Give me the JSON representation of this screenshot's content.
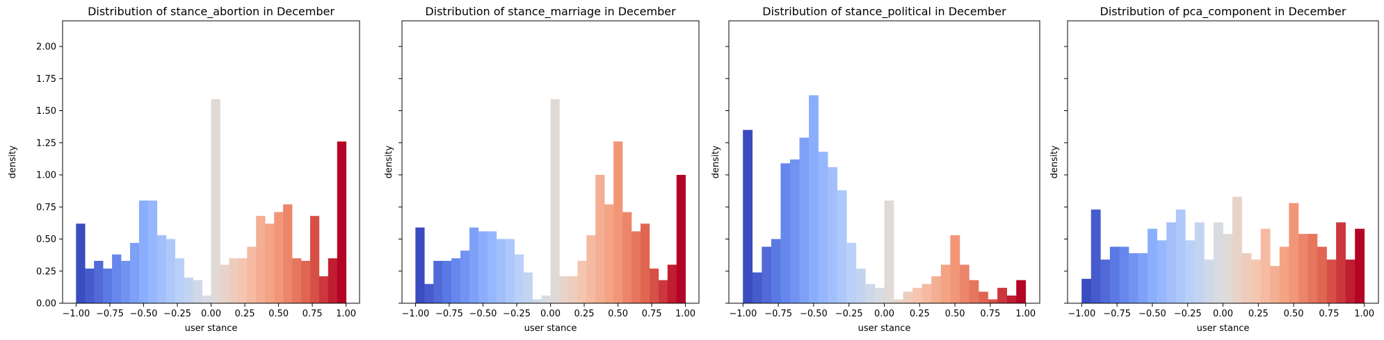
{
  "chart_data": [
    {
      "type": "bar",
      "title": "Distribution of stance_abortion in December",
      "xlabel": "user stance",
      "ylabel": "density",
      "xlim": [
        -1.1,
        1.1
      ],
      "ylim": [
        0,
        2.2
      ],
      "bin_width": 0.0667,
      "x_ticks": [
        "−1.00",
        "−0.75",
        "−0.50",
        "−0.25",
        "0.00",
        "0.25",
        "0.50",
        "0.75",
        "1.00"
      ],
      "y_ticks": [
        "0.00",
        "0.25",
        "0.50",
        "0.75",
        "1.00",
        "1.25",
        "1.50",
        "1.75",
        "2.00"
      ],
      "values": [
        0.62,
        0.27,
        0.33,
        0.27,
        0.38,
        0.33,
        0.47,
        0.8,
        0.8,
        0.53,
        0.5,
        0.35,
        0.2,
        0.18,
        0.06,
        1.59,
        0.3,
        0.35,
        0.35,
        0.44,
        0.68,
        0.62,
        0.71,
        0.77,
        0.35,
        0.33,
        0.68,
        0.21,
        0.35,
        1.26
      ]
    },
    {
      "type": "bar",
      "title": "Distribution of stance_marriage in December",
      "xlabel": "user stance",
      "ylabel": "density",
      "xlim": [
        -1.1,
        1.1
      ],
      "ylim": [
        0,
        2.2
      ],
      "bin_width": 0.0667,
      "x_ticks": [
        "−1.00",
        "−0.75",
        "−0.50",
        "−0.25",
        "0.00",
        "0.25",
        "0.50",
        "0.75",
        "1.00"
      ],
      "y_ticks": [],
      "values": [
        0.59,
        0.15,
        0.33,
        0.33,
        0.35,
        0.41,
        0.59,
        0.56,
        0.56,
        0.5,
        0.5,
        0.38,
        0.24,
        0.03,
        0.06,
        1.59,
        0.21,
        0.21,
        0.33,
        0.53,
        1.0,
        0.77,
        1.26,
        0.71,
        0.56,
        0.62,
        0.27,
        0.18,
        0.3,
        1.0
      ]
    },
    {
      "type": "bar",
      "title": "Distribution of stance_political in December",
      "xlabel": "user stance",
      "ylabel": "density",
      "xlim": [
        -1.1,
        1.1
      ],
      "ylim": [
        0,
        2.2
      ],
      "bin_width": 0.0667,
      "x_ticks": [
        "−1.00",
        "−0.75",
        "−0.50",
        "−0.25",
        "0.00",
        "0.25",
        "0.50",
        "0.75",
        "1.00"
      ],
      "y_ticks": [],
      "values": [
        1.35,
        0.24,
        0.44,
        0.5,
        1.09,
        1.12,
        1.29,
        1.62,
        1.18,
        1.06,
        0.88,
        0.47,
        0.27,
        0.15,
        0.12,
        0.8,
        0.03,
        0.09,
        0.12,
        0.15,
        0.21,
        0.3,
        0.53,
        0.3,
        0.18,
        0.09,
        0.03,
        0.12,
        0.06,
        0.18
      ]
    },
    {
      "type": "bar",
      "title": "Distribution of pca_component in December",
      "xlabel": "user stance",
      "ylabel": "density",
      "xlim": [
        -1.1,
        1.1
      ],
      "ylim": [
        0,
        2.2
      ],
      "bin_width": 0.0667,
      "x_ticks": [
        "−1.00",
        "−0.75",
        "−0.50",
        "−0.25",
        "0.00",
        "0.25",
        "0.50",
        "0.75",
        "1.00"
      ],
      "y_ticks": [],
      "values": [
        0.19,
        0.73,
        0.34,
        0.44,
        0.44,
        0.39,
        0.39,
        0.58,
        0.49,
        0.63,
        0.73,
        0.49,
        0.63,
        0.34,
        0.63,
        0.54,
        0.83,
        0.39,
        0.34,
        0.58,
        0.29,
        0.44,
        0.78,
        0.54,
        0.54,
        0.44,
        0.34,
        0.63,
        0.34,
        0.58
      ]
    }
  ]
}
